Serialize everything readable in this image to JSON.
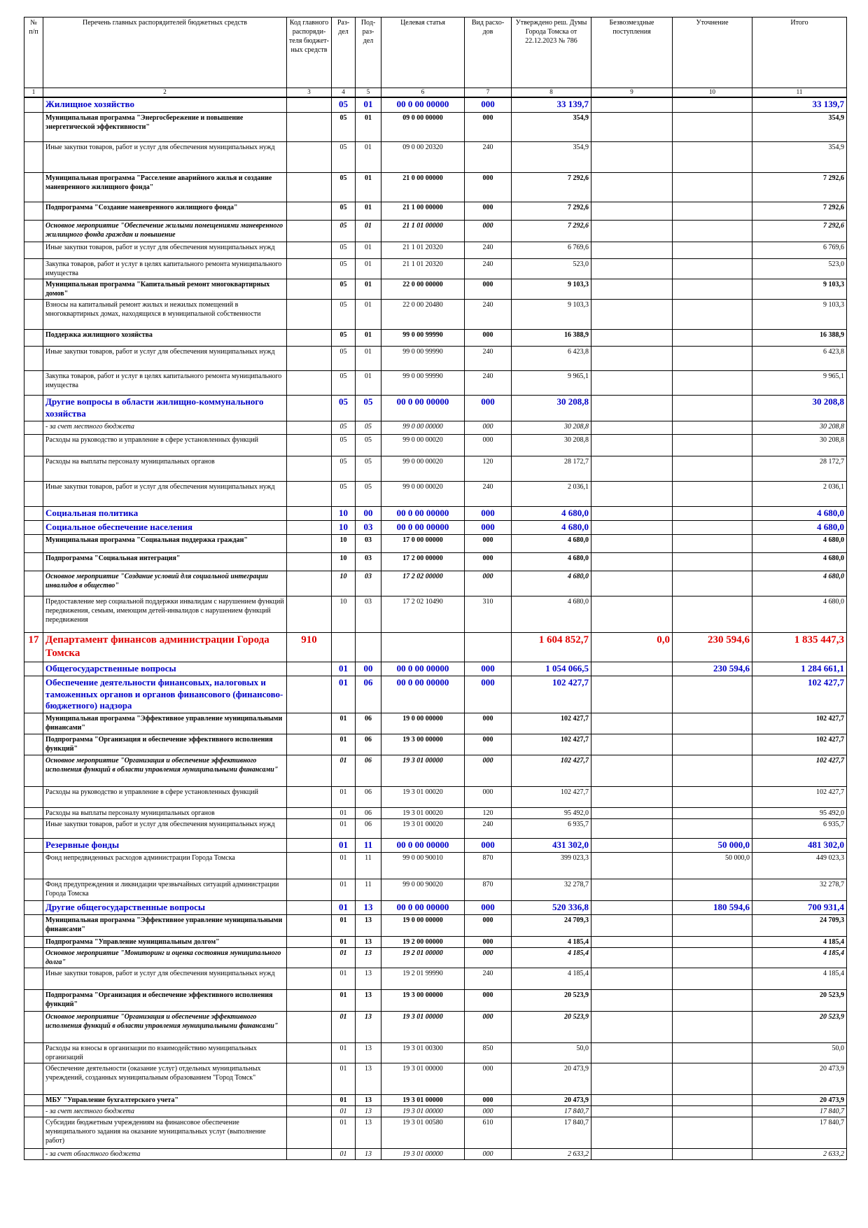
{
  "header": [
    "№ п/п",
    "Перечень главных распорядителей бюджетных средств",
    "Код главного распоряди-теля бюджет-ных средств",
    "Раз-дел",
    "Под-раз-дел",
    "Целевая статья",
    "Вид расхо-дов",
    "Утверждено реш. Думы Города Томска от 22.12.2023 № 786",
    "Безвозмездные поступления",
    "Уточнение",
    "Итого"
  ],
  "col_numbers": [
    "1",
    "2",
    "3",
    "4",
    "5",
    "6",
    "7",
    "8",
    "9",
    "10",
    "11"
  ],
  "rows": [
    {
      "s": "blue",
      "h": 22,
      "c": [
        "",
        "Жилищное хозяйство",
        "",
        "05",
        "01",
        "00 0 00 00000",
        "000",
        "33 139,7",
        "",
        "",
        "33 139,7"
      ]
    },
    {
      "s": "bold",
      "h": 42,
      "c": [
        "",
        "Муниципальная программа \"Энергосбережение и повышение энергетической эффективности\"",
        "",
        "05",
        "01",
        "09 0 00 00000",
        "000",
        "354,9",
        "",
        "",
        "354,9"
      ]
    },
    {
      "s": "",
      "h": 44,
      "c": [
        "",
        "Иные закупки товаров, работ и услуг для обеспечения муниципальных нужд",
        "",
        "05",
        "01",
        "09 0 00 20320",
        "240",
        "354,9",
        "",
        "",
        "354,9"
      ]
    },
    {
      "s": "bold",
      "h": 42,
      "c": [
        "",
        "Муниципальная программа \"Расселение аварийного жилья и создание маневренного жилищного фонда\"",
        "",
        "05",
        "01",
        "21 0 00 00000",
        "000",
        "7 292,6",
        "",
        "",
        "7 292,6"
      ]
    },
    {
      "s": "bold",
      "h": 26,
      "c": [
        "",
        "Подпрограмма \"Создание маневренного жилищного фонда\"",
        "",
        "05",
        "01",
        "21 1 00 00000",
        "000",
        "7 292,6",
        "",
        "",
        "7 292,6"
      ]
    },
    {
      "s": "bi",
      "h": 31,
      "c": [
        "",
        "Основное мероприятие \"Обеспечение жилыми помещениями маневренного жилищного фонда граждан и повышение",
        "",
        "05",
        "01",
        "21 1 01 00000",
        "000",
        "7 292,6",
        "",
        "",
        "7 292,6"
      ]
    },
    {
      "s": "",
      "h": 24,
      "c": [
        "",
        "Иные закупки товаров, работ и услуг для обеспечения муниципальных нужд",
        "",
        "05",
        "01",
        "21 1 01 20320",
        "240",
        "6 769,6",
        "",
        "",
        "6 769,6"
      ]
    },
    {
      "s": "",
      "h": 24,
      "c": [
        "",
        "Закупка товаров, работ и услуг в целях капитального ремонта муниципального имущества",
        "",
        "05",
        "01",
        "21 1 01 20320",
        "240",
        "523,0",
        "",
        "",
        "523,0"
      ]
    },
    {
      "s": "bold",
      "h": 24,
      "c": [
        "",
        "Муниципальная программа \"Капитальный ремонт многоквартирных домов\"",
        "",
        "05",
        "01",
        "22 0 00 00000",
        "000",
        "9 103,3",
        "",
        "",
        "9 103,3"
      ]
    },
    {
      "s": "",
      "h": 43,
      "c": [
        "",
        "Взносы на капитальный ремонт жилых и нежилых помещений в многоквартирных домах, находящихся в муниципальной собственности",
        "",
        "05",
        "01",
        "22 0 00 20480",
        "240",
        "9 103,3",
        "",
        "",
        "9 103,3"
      ]
    },
    {
      "s": "bold",
      "h": 24,
      "c": [
        "",
        "Поддержка жилищного хозяйства",
        "",
        "05",
        "01",
        "99 0 00 99990",
        "000",
        "16 388,9",
        "",
        "",
        "16 388,9"
      ]
    },
    {
      "s": "",
      "h": 35,
      "c": [
        "",
        "Иные закупки товаров, работ и услуг для обеспечения муниципальных нужд",
        "",
        "05",
        "01",
        "99 0 00 99990",
        "240",
        "6 423,8",
        "",
        "",
        "6 423,8"
      ]
    },
    {
      "s": "",
      "h": 35,
      "c": [
        "",
        "Закупка товаров, работ и услуг в целях капитального ремонта муниципального имущества",
        "",
        "05",
        "01",
        "99 0 00 99990",
        "240",
        "9 965,1",
        "",
        "",
        "9 965,1"
      ]
    },
    {
      "s": "blue",
      "h": 31,
      "c": [
        "",
        "Другие вопросы в области жилищно-коммунального хозяйства",
        "",
        "05",
        "05",
        "00 0 00 00000",
        "000",
        "30 208,8",
        "",
        "",
        "30 208,8"
      ]
    },
    {
      "s": "it",
      "h": 19,
      "c": [
        "",
        "- за счет местного бюджета",
        "",
        "05",
        "05",
        "99 0 00 00000",
        "000",
        "30 208,8",
        "",
        "",
        "30 208,8"
      ]
    },
    {
      "s": "",
      "h": 31,
      "c": [
        "",
        "Расходы на руководство и управление в сфере установленных функций",
        "",
        "05",
        "05",
        "99 0 00 00020",
        "000",
        "30 208,8",
        "",
        "",
        "30 208,8"
      ]
    },
    {
      "s": "",
      "h": 36,
      "c": [
        "",
        "Расходы на выплаты персоналу муниципальных органов",
        "",
        "05",
        "05",
        "99 0 00 00020",
        "120",
        "28 172,7",
        "",
        "",
        "28 172,7"
      ]
    },
    {
      "s": "",
      "h": 36,
      "c": [
        "",
        "Иные закупки товаров, работ и услуг для обеспечения муниципальных нужд",
        "",
        "05",
        "05",
        "99 0 00 00020",
        "240",
        "2 036,1",
        "",
        "",
        "2 036,1"
      ]
    },
    {
      "s": "blue",
      "h": 18,
      "c": [
        "",
        "Социальная политика",
        "",
        "10",
        "00",
        "00 0 00 00000",
        "000",
        "4 680,0",
        "",
        "",
        "4 680,0"
      ]
    },
    {
      "s": "blue",
      "h": 18,
      "c": [
        "",
        "Социальное обеспечение населения",
        "",
        "10",
        "03",
        "00 0 00 00000",
        "000",
        "4 680,0",
        "",
        "",
        "4 680,0"
      ]
    },
    {
      "s": "bold",
      "h": 26,
      "c": [
        "",
        "Муниципальная программа \"Социальная поддержка граждан\"",
        "",
        "10",
        "03",
        "17 0 00 00000",
        "000",
        "4 680,0",
        "",
        "",
        "4 680,0"
      ]
    },
    {
      "s": "bold",
      "h": 26,
      "c": [
        "",
        "Подпрограмма \"Социальная интеграция\"",
        "",
        "10",
        "03",
        "17 2 00 00000",
        "000",
        "4 680,0",
        "",
        "",
        "4 680,0"
      ]
    },
    {
      "s": "bi",
      "h": 36,
      "c": [
        "",
        "Основное мероприятие \"Создание условий для социальной интеграции инвалидов в общество\"",
        "",
        "10",
        "03",
        "17 2 02 00000",
        "000",
        "4 680,0",
        "",
        "",
        "4 680,0"
      ]
    },
    {
      "s": "",
      "h": 52,
      "c": [
        "",
        "Предоставление мер социальной поддержки инвалидам с нарушением функций передвижения, семьям, имеющим детей-инвалидов с нарушением функций передвижения",
        "",
        "10",
        "03",
        "17 2 02 10490",
        "310",
        "4 680,0",
        "",
        "",
        "4 680,0"
      ]
    },
    {
      "s": "red",
      "h": 42,
      "c": [
        "17",
        "Департамент финансов администрации Города Томска",
        "910",
        "",
        "",
        "",
        "",
        "1 604 852,7",
        "0,0",
        "230 594,6",
        "1 835 447,3"
      ]
    },
    {
      "s": "blue",
      "h": 17,
      "c": [
        "",
        "Общегосударственные вопросы",
        "",
        "01",
        "00",
        "00 0 00 00000",
        "000",
        "1 054 066,5",
        "",
        "230 594,6",
        "1 284 661,1"
      ]
    },
    {
      "s": "blue",
      "h": 46,
      "c": [
        "",
        "Обеспечение деятельности финансовых, налоговых и таможенных органов и органов финансового (финансово-бюджетного) надзора",
        "",
        "01",
        "06",
        "00 0 00 00000",
        "000",
        "102 427,7",
        "",
        "",
        "102 427,7"
      ]
    },
    {
      "s": "bold",
      "h": 30,
      "c": [
        "",
        "Муниципальная программа \"Эффективное управление муниципальными финансами\"",
        "",
        "01",
        "06",
        "19 0 00 00000",
        "000",
        "102 427,7",
        "",
        "",
        "102 427,7"
      ]
    },
    {
      "s": "bold",
      "h": 30,
      "c": [
        "",
        "Подпрограмма \"Организация и обеспечение эффективного исполнения функций\"",
        "",
        "01",
        "06",
        "19 3 00 00000",
        "000",
        "102 427,7",
        "",
        "",
        "102 427,7"
      ]
    },
    {
      "s": "bi",
      "h": 45,
      "c": [
        "",
        "Основное мероприятие \"Организация и обеспечение эффективного исполнения функций в области управления муниципальными финансами\"",
        "",
        "01",
        "06",
        "19 3 01 00000",
        "000",
        "102 427,7",
        "",
        "",
        "102 427,7"
      ]
    },
    {
      "s": "",
      "h": 30,
      "c": [
        "",
        "Расходы на руководство и управление в сфере установленных функций",
        "",
        "01",
        "06",
        "19 3 01 00020",
        "000",
        "102 427,7",
        "",
        "",
        "102 427,7"
      ]
    },
    {
      "s": "",
      "h": 16,
      "c": [
        "",
        "Расходы на выплаты персоналу муниципальных органов",
        "",
        "01",
        "06",
        "19 3 01 00020",
        "120",
        "95 492,0",
        "",
        "",
        "95 492,0"
      ]
    },
    {
      "s": "",
      "h": 28,
      "c": [
        "",
        "Иные закупки товаров, работ и услуг для обеспечения муниципальных нужд",
        "",
        "01",
        "06",
        "19 3 01 00020",
        "240",
        "6 935,7",
        "",
        "",
        "6 935,7"
      ]
    },
    {
      "s": "blue",
      "h": 16,
      "c": [
        "",
        "Резервные фонды",
        "",
        "01",
        "11",
        "00 0 00 00000",
        "000",
        "431 302,0",
        "",
        "50 000,0",
        "481 302,0"
      ]
    },
    {
      "s": "",
      "h": 38,
      "c": [
        "",
        "Фонд непредвиденных расходов администрации Города Томска",
        "",
        "01",
        "11",
        "99 0 00 90010",
        "870",
        "399 023,3",
        "",
        "50 000,0",
        "449 023,3"
      ]
    },
    {
      "s": "",
      "h": 31,
      "c": [
        "",
        "Фонд предупреждения и ликвидации чрезвычайных ситуаций администрации Города Томска",
        "",
        "01",
        "11",
        "99 0 00 90020",
        "870",
        "32 278,7",
        "",
        "",
        "32 278,7"
      ]
    },
    {
      "s": "blue",
      "h": 16,
      "c": [
        "",
        "Другие общегосударственные вопросы",
        "",
        "01",
        "13",
        "00 0 00 00000",
        "000",
        "520 336,8",
        "",
        "180 594,6",
        "700 931,4"
      ]
    },
    {
      "s": "bold",
      "h": 31,
      "c": [
        "",
        "Муниципальная программа \"Эффективное управление муниципальными финансами\"",
        "",
        "01",
        "13",
        "19 0 00 00000",
        "000",
        "24 709,3",
        "",
        "",
        "24 709,3"
      ]
    },
    {
      "s": "bold",
      "h": 16,
      "c": [
        "",
        "Подпрограмма \"Управление муниципальным долгом\"",
        "",
        "01",
        "13",
        "19 2 00 00000",
        "000",
        "4 185,4",
        "",
        "",
        "4 185,4"
      ]
    },
    {
      "s": "bi",
      "h": 28,
      "c": [
        "",
        "Основное мероприятие \"Мониторинг и оценка состояния муниципального долга\"",
        "",
        "01",
        "13",
        "19 2 01 00000",
        "000",
        "4 185,4",
        "",
        "",
        "4 185,4"
      ]
    },
    {
      "s": "",
      "h": 31,
      "c": [
        "",
        "Иные закупки товаров, работ и услуг для обеспечения муниципальных нужд",
        "",
        "01",
        "13",
        "19 2 01 99990",
        "240",
        "4 185,4",
        "",
        "",
        "4 185,4"
      ]
    },
    {
      "s": "bold",
      "h": 31,
      "c": [
        "",
        "Подпрограмма \"Организация и обеспечение эффективного исполнения функций\"",
        "",
        "01",
        "13",
        "19 3 00 00000",
        "000",
        "20 523,9",
        "",
        "",
        "20 523,9"
      ]
    },
    {
      "s": "bi",
      "h": 45,
      "c": [
        "",
        "Основное мероприятие \"Организация и обеспечение эффективного исполнения функций в области управления муниципальными финансами\"",
        "",
        "01",
        "13",
        "19 3 01 00000",
        "000",
        "20 523,9",
        "",
        "",
        "20 523,9"
      ]
    },
    {
      "s": "",
      "h": 28,
      "c": [
        "",
        "Расходы на взносы в организации по взаимодействию муниципальных организаций",
        "",
        "01",
        "13",
        "19 3 01 00300",
        "850",
        "50,0",
        "",
        "",
        "50,0"
      ]
    },
    {
      "s": "",
      "h": 45,
      "c": [
        "",
        "Обеспечение деятельности (оказание услуг) отдельных муниципальных учреждений, созданных муниципальным образованием \"Город Томск\"",
        "",
        "01",
        "13",
        "19 3 01 00000",
        "000",
        "20 473,9",
        "",
        "",
        "20 473,9"
      ]
    },
    {
      "s": "bold",
      "h": 16,
      "c": [
        "",
        "МБУ \"Управление бухгалтерского учета\"",
        "",
        "01",
        "13",
        "19 3 01 00000",
        "000",
        "20 473,9",
        "",
        "",
        "20 473,9"
      ]
    },
    {
      "s": "it",
      "h": 13,
      "c": [
        "",
        "- за счет местного бюджета",
        "",
        "01",
        "13",
        "19 3 01 00000",
        "000",
        "17 840,7",
        "",
        "",
        "17 840,7"
      ]
    },
    {
      "s": "",
      "h": 45,
      "c": [
        "",
        "Субсидии бюджетным учреждениям на финансовое обеспечение муниципального задания на оказание муниципальных услуг (выполнение работ)",
        "",
        "01",
        "13",
        "19 3 01 00580",
        "610",
        "17 840,7",
        "",
        "",
        "17 840,7"
      ]
    },
    {
      "s": "it",
      "h": 13,
      "c": [
        "",
        "- за счет областного бюджета",
        "",
        "01",
        "13",
        "19 3 01 00000",
        "000",
        "2 633,2",
        "",
        "",
        "2 633,2"
      ]
    }
  ]
}
